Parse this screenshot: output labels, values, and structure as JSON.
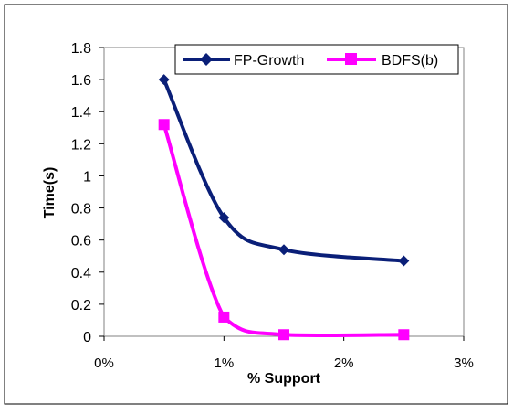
{
  "chart_data": {
    "type": "line",
    "title": "",
    "xlabel": "% Support",
    "ylabel": "Time(s)",
    "x_unit": "%",
    "xlim": [
      0,
      3
    ],
    "ylim": [
      0,
      1.8
    ],
    "x_ticks": [
      "0%",
      "1%",
      "2%",
      "3%"
    ],
    "y_ticks": [
      "0",
      "0.2",
      "0.4",
      "0.6",
      "0.8",
      "1",
      "1.2",
      "1.4",
      "1.6",
      "1.8"
    ],
    "grid": false,
    "legend_position": "top-right",
    "series": [
      {
        "name": "FP-Growth",
        "marker": "diamond",
        "color": "#0a1f78",
        "x": [
          0.5,
          1.0,
          1.5,
          2.5
        ],
        "y": [
          1.6,
          0.74,
          0.54,
          0.47
        ]
      },
      {
        "name": "BDFS(b)",
        "marker": "square",
        "color": "#ff00ff",
        "x": [
          0.5,
          1.0,
          1.5,
          2.5
        ],
        "y": [
          1.32,
          0.12,
          0.01,
          0.01
        ]
      }
    ]
  }
}
